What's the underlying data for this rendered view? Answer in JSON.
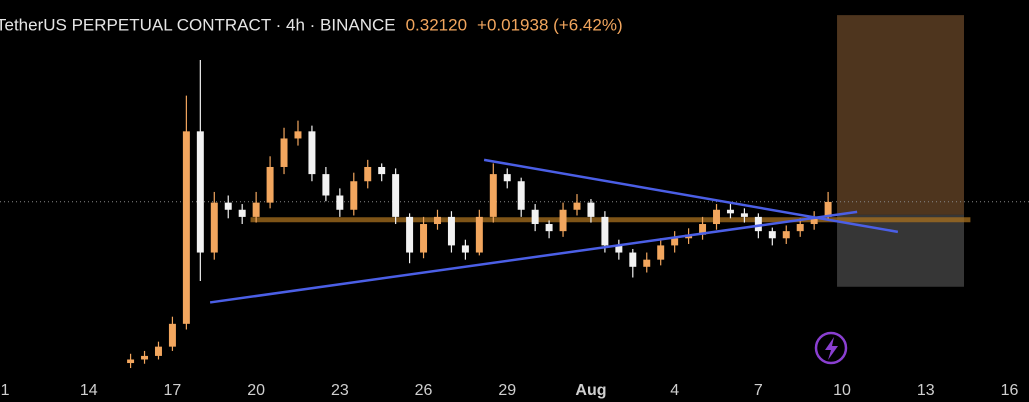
{
  "chart_data": {
    "type": "candlestick",
    "title": "TetherUS PERPETUAL CONTRACT · 4h · BINANCE",
    "price": "0.32120",
    "change": "+0.01938 (+6.42%)",
    "xlim": [
      10.82,
      47.7
    ],
    "ylim": [
      0.06,
      0.6
    ],
    "xticks": [
      {
        "value": 11,
        "label": "1"
      },
      14,
      17,
      20,
      23,
      26,
      29,
      {
        "value": 32,
        "label": "Aug"
      },
      {
        "value": 35,
        "label": "4"
      },
      {
        "value": 38,
        "label": "7"
      },
      {
        "value": 41,
        "label": "10"
      },
      {
        "value": 44,
        "label": "13"
      },
      {
        "value": 47,
        "label": "16"
      }
    ],
    "up_color": "#f2a65e",
    "down_color": "#f2f2f2",
    "candles": {
      "x": [
        15.5,
        16,
        16.5,
        17,
        17.5,
        18,
        18.5,
        19,
        19.5,
        20,
        20.5,
        21,
        21.5,
        22,
        22.5,
        23,
        23.5,
        24,
        24.5,
        25,
        25.5,
        26,
        26.5,
        27,
        27.5,
        28,
        28.5,
        29,
        29.5,
        30,
        30.5,
        31,
        31.5,
        32,
        32.5,
        33,
        33.5,
        34,
        34.5,
        35,
        35.5,
        36,
        36.5,
        37,
        37.5,
        38,
        38.5,
        39,
        39.5,
        40,
        40.5
      ],
      "open": [
        0.095,
        0.1,
        0.105,
        0.118,
        0.15,
        0.42,
        0.25,
        0.32,
        0.31,
        0.3,
        0.32,
        0.37,
        0.41,
        0.42,
        0.36,
        0.33,
        0.31,
        0.35,
        0.37,
        0.36,
        0.3,
        0.25,
        0.29,
        0.3,
        0.26,
        0.25,
        0.3,
        0.36,
        0.35,
        0.31,
        0.29,
        0.28,
        0.31,
        0.32,
        0.3,
        0.26,
        0.25,
        0.23,
        0.24,
        0.26,
        0.27,
        0.275,
        0.29,
        0.31,
        0.305,
        0.3,
        0.28,
        0.27,
        0.28,
        0.29,
        0.3
      ],
      "high": [
        0.108,
        0.112,
        0.125,
        0.16,
        0.47,
        0.52,
        0.335,
        0.33,
        0.318,
        0.335,
        0.385,
        0.425,
        0.435,
        0.428,
        0.37,
        0.34,
        0.362,
        0.38,
        0.375,
        0.368,
        0.305,
        0.3,
        0.31,
        0.308,
        0.268,
        0.31,
        0.375,
        0.368,
        0.355,
        0.318,
        0.295,
        0.32,
        0.332,
        0.325,
        0.308,
        0.268,
        0.255,
        0.25,
        0.27,
        0.28,
        0.284,
        0.3,
        0.318,
        0.318,
        0.312,
        0.305,
        0.285,
        0.288,
        0.298,
        0.308,
        0.335
      ],
      "low": [
        0.088,
        0.094,
        0.1,
        0.112,
        0.142,
        0.21,
        0.24,
        0.298,
        0.29,
        0.292,
        0.312,
        0.36,
        0.4,
        0.35,
        0.322,
        0.3,
        0.302,
        0.34,
        0.35,
        0.29,
        0.235,
        0.242,
        0.282,
        0.25,
        0.24,
        0.246,
        0.292,
        0.34,
        0.3,
        0.28,
        0.27,
        0.272,
        0.302,
        0.292,
        0.25,
        0.24,
        0.215,
        0.222,
        0.232,
        0.25,
        0.262,
        0.268,
        0.282,
        0.298,
        0.292,
        0.27,
        0.26,
        0.262,
        0.272,
        0.282,
        0.295
      ],
      "close": [
        0.1,
        0.105,
        0.118,
        0.15,
        0.42,
        0.25,
        0.32,
        0.31,
        0.3,
        0.32,
        0.37,
        0.41,
        0.42,
        0.36,
        0.33,
        0.31,
        0.35,
        0.37,
        0.36,
        0.3,
        0.25,
        0.29,
        0.3,
        0.26,
        0.25,
        0.3,
        0.36,
        0.35,
        0.31,
        0.29,
        0.28,
        0.31,
        0.32,
        0.3,
        0.26,
        0.25,
        0.23,
        0.24,
        0.26,
        0.27,
        0.275,
        0.29,
        0.31,
        0.305,
        0.3,
        0.28,
        0.27,
        0.28,
        0.29,
        0.3,
        0.321
      ]
    },
    "trendline_color": "#4b5fe6",
    "trendlines": [
      {
        "x": [
          18.35,
          41.54
        ],
        "y": [
          0.18,
          0.307
        ]
      },
      {
        "x": [
          28.17,
          43.0
        ],
        "y": [
          0.38,
          0.279
        ]
      }
    ],
    "support_line": {
      "x": [
        19.8,
        45.6
      ],
      "y": 0.296,
      "color": "#a8701f"
    },
    "current_price_line": 0.3212,
    "position": {
      "x": [
        40.82,
        45.37
      ],
      "target": 0.583,
      "entry": 0.303,
      "stop": 0.202
    }
  }
}
